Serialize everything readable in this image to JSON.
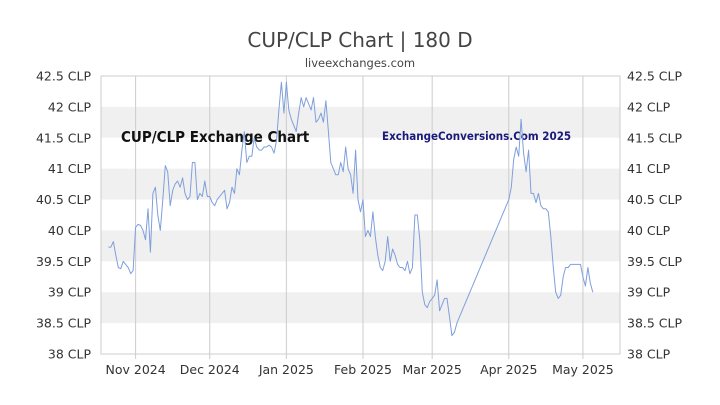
{
  "chart_data": {
    "type": "line",
    "title": "CUP/CLP Chart | 180 D",
    "subtitle": "liveexchanges.com",
    "annotations": [
      "CUP/CLP Exchange Chart",
      "ExchangeConversions.Com 2025"
    ],
    "xlabel": "",
    "ylabel": "",
    "ylim": [
      38,
      42.5
    ],
    "y_ticks": [
      {
        "value": 42.5,
        "label": "42.5 CLP"
      },
      {
        "value": 42,
        "label": "42 CLP"
      },
      {
        "value": 41.5,
        "label": "41.5 CLP"
      },
      {
        "value": 41,
        "label": "41 CLP"
      },
      {
        "value": 40.5,
        "label": "40.5 CLP"
      },
      {
        "value": 40,
        "label": "40 CLP"
      },
      {
        "value": 39.5,
        "label": "39.5 CLP"
      },
      {
        "value": 39,
        "label": "39 CLP"
      },
      {
        "value": 38.5,
        "label": "38.5 CLP"
      },
      {
        "value": 38,
        "label": "38 CLP"
      }
    ],
    "x_domain": [
      "2024-10-18",
      "2025-05-16"
    ],
    "x_ticks": [
      {
        "date": "2024-11-01",
        "label": "Nov 2024"
      },
      {
        "date": "2024-12-01",
        "label": "Dec 2024"
      },
      {
        "date": "2025-01-01",
        "label": "Jan 2025"
      },
      {
        "date": "2025-02-01",
        "label": "Feb 2025"
      },
      {
        "date": "2025-03-01",
        "label": "Mar 2025"
      },
      {
        "date": "2025-04-01",
        "label": "Apr 2025"
      },
      {
        "date": "2025-05-01",
        "label": "May 2025"
      }
    ],
    "grid": "alternating-bands",
    "line_color": "#7f9fdc",
    "series": [
      {
        "points": [
          [
            "2024-10-21",
            39.73
          ],
          [
            "2024-10-22",
            39.73
          ],
          [
            "2024-10-23",
            39.82
          ],
          [
            "2024-10-24",
            39.6
          ],
          [
            "2024-10-25",
            39.4
          ],
          [
            "2024-10-26",
            39.38
          ],
          [
            "2024-10-27",
            39.5
          ],
          [
            "2024-10-28",
            39.45
          ],
          [
            "2024-10-29",
            39.4
          ],
          [
            "2024-10-30",
            39.3
          ],
          [
            "2024-10-31",
            39.35
          ],
          [
            "2024-11-01",
            40.05
          ],
          [
            "2024-11-02",
            40.1
          ],
          [
            "2024-11-03",
            40.08
          ],
          [
            "2024-11-04",
            40.0
          ],
          [
            "2024-11-05",
            39.85
          ],
          [
            "2024-11-06",
            40.35
          ],
          [
            "2024-11-07",
            39.65
          ],
          [
            "2024-11-08",
            40.6
          ],
          [
            "2024-11-09",
            40.7
          ],
          [
            "2024-11-10",
            40.25
          ],
          [
            "2024-11-11",
            40.0
          ],
          [
            "2024-11-12",
            40.5
          ],
          [
            "2024-11-13",
            41.05
          ],
          [
            "2024-11-14",
            40.95
          ],
          [
            "2024-11-15",
            40.4
          ],
          [
            "2024-11-16",
            40.65
          ],
          [
            "2024-11-17",
            40.75
          ],
          [
            "2024-11-18",
            40.8
          ],
          [
            "2024-11-19",
            40.7
          ],
          [
            "2024-11-20",
            40.85
          ],
          [
            "2024-11-21",
            40.6
          ],
          [
            "2024-11-22",
            40.5
          ],
          [
            "2024-11-23",
            40.55
          ],
          [
            "2024-11-24",
            41.1
          ],
          [
            "2024-11-25",
            41.1
          ],
          [
            "2024-11-26",
            40.5
          ],
          [
            "2024-11-27",
            40.6
          ],
          [
            "2024-11-28",
            40.55
          ],
          [
            "2024-11-29",
            40.8
          ],
          [
            "2024-11-30",
            40.55
          ],
          [
            "2024-12-01",
            40.55
          ],
          [
            "2024-12-02",
            40.45
          ],
          [
            "2024-12-03",
            40.4
          ],
          [
            "2024-12-04",
            40.5
          ],
          [
            "2024-12-05",
            40.55
          ],
          [
            "2024-12-06",
            40.6
          ],
          [
            "2024-12-07",
            40.65
          ],
          [
            "2024-12-08",
            40.35
          ],
          [
            "2024-12-09",
            40.45
          ],
          [
            "2024-12-10",
            40.7
          ],
          [
            "2024-12-11",
            40.6
          ],
          [
            "2024-12-12",
            41.0
          ],
          [
            "2024-12-13",
            40.9
          ],
          [
            "2024-12-14",
            41.3
          ],
          [
            "2024-12-15",
            41.6
          ],
          [
            "2024-12-16",
            41.1
          ],
          [
            "2024-12-17",
            41.2
          ],
          [
            "2024-12-18",
            41.2
          ],
          [
            "2024-12-19",
            41.5
          ],
          [
            "2024-12-20",
            41.35
          ],
          [
            "2024-12-21",
            41.3
          ],
          [
            "2024-12-22",
            41.3
          ],
          [
            "2024-12-23",
            41.35
          ],
          [
            "2024-12-24",
            41.35
          ],
          [
            "2024-12-25",
            41.38
          ],
          [
            "2024-12-26",
            41.35
          ],
          [
            "2024-12-27",
            41.25
          ],
          [
            "2024-12-28",
            41.45
          ],
          [
            "2024-12-29",
            41.95
          ],
          [
            "2024-12-30",
            42.4
          ],
          [
            "2024-12-31",
            41.9
          ],
          [
            "2025-01-01",
            42.4
          ],
          [
            "2025-01-02",
            41.95
          ],
          [
            "2025-01-03",
            41.8
          ],
          [
            "2025-01-04",
            41.7
          ],
          [
            "2025-01-05",
            41.6
          ],
          [
            "2025-01-06",
            41.9
          ],
          [
            "2025-01-07",
            42.15
          ],
          [
            "2025-01-08",
            42.0
          ],
          [
            "2025-01-09",
            42.15
          ],
          [
            "2025-01-10",
            42.05
          ],
          [
            "2025-01-11",
            41.95
          ],
          [
            "2025-01-12",
            42.15
          ],
          [
            "2025-01-13",
            41.75
          ],
          [
            "2025-01-14",
            41.8
          ],
          [
            "2025-01-15",
            41.9
          ],
          [
            "2025-01-16",
            41.75
          ],
          [
            "2025-01-17",
            42.1
          ],
          [
            "2025-01-18",
            41.6
          ],
          [
            "2025-01-19",
            41.1
          ],
          [
            "2025-01-20",
            41.0
          ],
          [
            "2025-01-21",
            40.9
          ],
          [
            "2025-01-22",
            40.9
          ],
          [
            "2025-01-23",
            41.1
          ],
          [
            "2025-01-24",
            40.95
          ],
          [
            "2025-01-25",
            41.35
          ],
          [
            "2025-01-26",
            41.0
          ],
          [
            "2025-01-27",
            40.9
          ],
          [
            "2025-01-28",
            40.6
          ],
          [
            "2025-01-29",
            41.3
          ],
          [
            "2025-01-30",
            40.5
          ],
          [
            "2025-01-31",
            40.3
          ],
          [
            "2025-02-01",
            40.5
          ],
          [
            "2025-02-02",
            39.9
          ],
          [
            "2025-02-03",
            40.0
          ],
          [
            "2025-02-04",
            39.9
          ],
          [
            "2025-02-05",
            40.3
          ],
          [
            "2025-02-06",
            39.9
          ],
          [
            "2025-02-07",
            39.6
          ],
          [
            "2025-02-08",
            39.4
          ],
          [
            "2025-02-09",
            39.35
          ],
          [
            "2025-02-10",
            39.5
          ],
          [
            "2025-02-11",
            39.9
          ],
          [
            "2025-02-12",
            39.5
          ],
          [
            "2025-02-13",
            39.7
          ],
          [
            "2025-02-14",
            39.6
          ],
          [
            "2025-02-15",
            39.45
          ],
          [
            "2025-02-16",
            39.4
          ],
          [
            "2025-02-17",
            39.4
          ],
          [
            "2025-02-18",
            39.35
          ],
          [
            "2025-02-19",
            39.5
          ],
          [
            "2025-02-20",
            39.3
          ],
          [
            "2025-02-21",
            39.4
          ],
          [
            "2025-02-22",
            40.25
          ],
          [
            "2025-02-23",
            40.25
          ],
          [
            "2025-02-24",
            39.85
          ],
          [
            "2025-02-25",
            39.0
          ],
          [
            "2025-02-26",
            38.8
          ],
          [
            "2025-02-27",
            38.75
          ],
          [
            "2025-02-28",
            38.85
          ],
          [
            "2025-03-01",
            38.9
          ],
          [
            "2025-03-02",
            38.95
          ],
          [
            "2025-03-03",
            39.2
          ],
          [
            "2025-03-04",
            38.7
          ],
          [
            "2025-03-05",
            38.8
          ],
          [
            "2025-03-06",
            38.9
          ],
          [
            "2025-03-07",
            38.9
          ],
          [
            "2025-03-08",
            38.6
          ],
          [
            "2025-03-09",
            38.3
          ],
          [
            "2025-03-10",
            38.35
          ],
          [
            "2025-03-11",
            38.5
          ],
          [
            "2025-04-01",
            40.5
          ],
          [
            "2025-04-02",
            40.7
          ],
          [
            "2025-04-03",
            41.15
          ],
          [
            "2025-04-04",
            41.35
          ],
          [
            "2025-04-05",
            41.2
          ],
          [
            "2025-04-06",
            41.8
          ],
          [
            "2025-04-07",
            41.25
          ],
          [
            "2025-04-08",
            40.95
          ],
          [
            "2025-04-09",
            41.3
          ],
          [
            "2025-04-10",
            40.6
          ],
          [
            "2025-04-11",
            40.6
          ],
          [
            "2025-04-12",
            40.45
          ],
          [
            "2025-04-13",
            40.6
          ],
          [
            "2025-04-14",
            40.4
          ],
          [
            "2025-04-15",
            40.35
          ],
          [
            "2025-04-16",
            40.35
          ],
          [
            "2025-04-17",
            40.3
          ],
          [
            "2025-04-18",
            39.9
          ],
          [
            "2025-04-19",
            39.4
          ],
          [
            "2025-04-20",
            39.0
          ],
          [
            "2025-04-21",
            38.9
          ],
          [
            "2025-04-22",
            38.95
          ],
          [
            "2025-04-23",
            39.25
          ],
          [
            "2025-04-24",
            39.4
          ],
          [
            "2025-04-25",
            39.4
          ],
          [
            "2025-04-26",
            39.45
          ],
          [
            "2025-04-27",
            39.45
          ],
          [
            "2025-04-28",
            39.45
          ],
          [
            "2025-04-29",
            39.45
          ],
          [
            "2025-04-30",
            39.45
          ],
          [
            "2025-05-01",
            39.25
          ],
          [
            "2025-05-02",
            39.1
          ],
          [
            "2025-05-03",
            39.4
          ],
          [
            "2025-05-04",
            39.15
          ],
          [
            "2025-05-05",
            39.0
          ]
        ]
      }
    ]
  }
}
